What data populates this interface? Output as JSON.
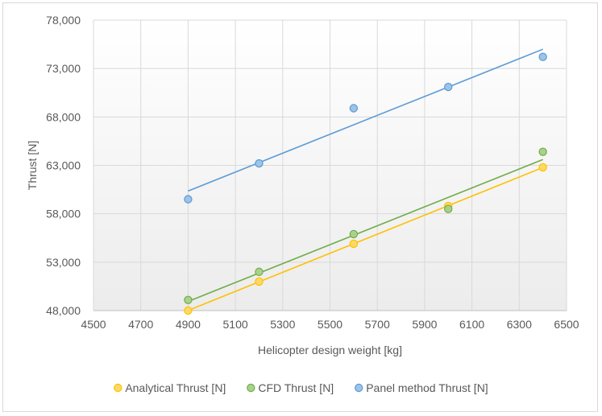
{
  "chart_data": {
    "type": "scatter",
    "title": "",
    "xlabel": "Helicopter design weight [kg]",
    "ylabel": "Thrust [N]",
    "xlim": [
      4500,
      6500
    ],
    "ylim": [
      48000,
      78000
    ],
    "x_ticks": [
      "4500",
      "4700",
      "4900",
      "5100",
      "5300",
      "5500",
      "5700",
      "5900",
      "6100",
      "6300",
      "6500"
    ],
    "y_ticks": [
      "48,000",
      "53,000",
      "58,000",
      "63,000",
      "68,000",
      "73,000",
      "78,000"
    ],
    "x_tick_values": [
      4500,
      4700,
      4900,
      5100,
      5300,
      5500,
      5700,
      5900,
      6100,
      6300,
      6500
    ],
    "y_tick_values": [
      48000,
      53000,
      58000,
      63000,
      68000,
      73000,
      78000
    ],
    "grid": true,
    "legend_position": "bottom",
    "trendlines": "linear",
    "series": [
      {
        "name": "Analytical Thrust [N]",
        "color": "#FFC000",
        "fill": "#FFD966",
        "x": [
          4900,
          5200,
          5600,
          6000,
          6400
        ],
        "y": [
          48000,
          51000,
          54900,
          58800,
          62800
        ]
      },
      {
        "name": "CFD Thrust [N]",
        "color": "#70AD47",
        "fill": "#A9D18E",
        "x": [
          4900,
          5200,
          5600,
          6000,
          6400
        ],
        "y": [
          49100,
          52000,
          55900,
          58500,
          64400
        ]
      },
      {
        "name": "Panel method Thrust [N]",
        "color": "#5B9BD5",
        "fill": "#9DC3E6",
        "x": [
          4900,
          5200,
          5600,
          6000,
          6400
        ],
        "y": [
          59500,
          63200,
          68900,
          71100,
          74200
        ]
      }
    ]
  }
}
